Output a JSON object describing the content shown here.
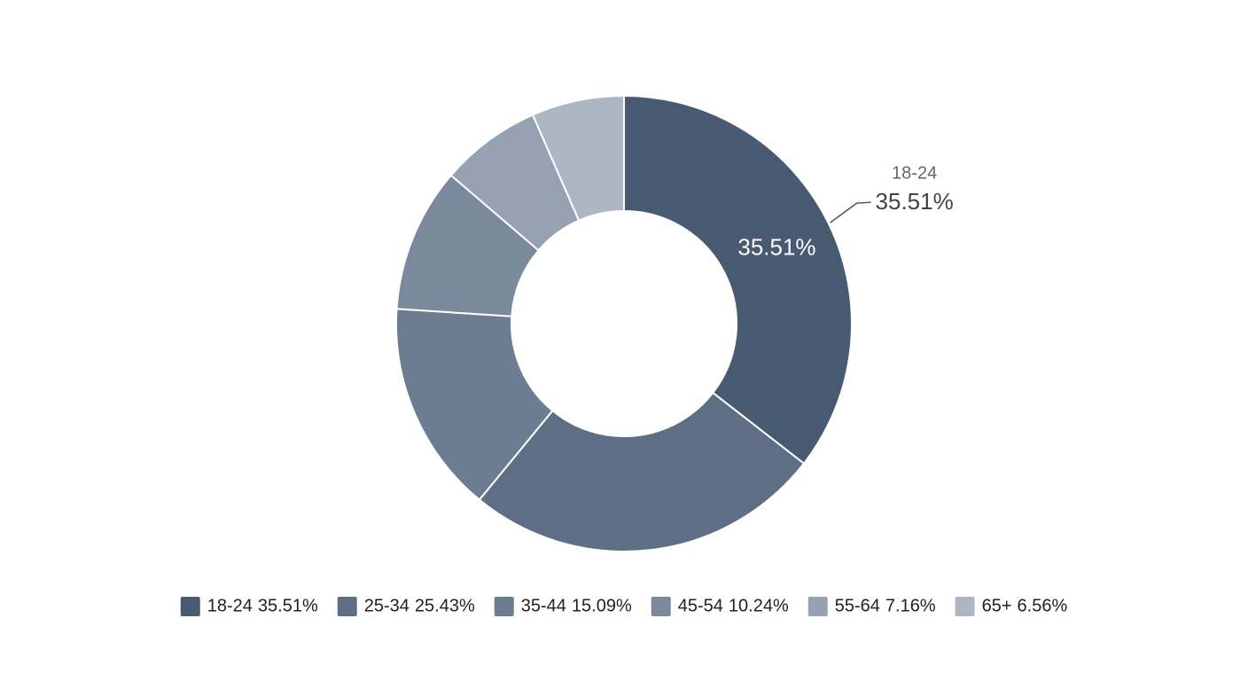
{
  "chart_data": {
    "type": "donut",
    "categories": [
      "18-24",
      "25-34",
      "35-44",
      "45-54",
      "55-64",
      "65+"
    ],
    "values": [
      35.51,
      25.43,
      15.09,
      10.24,
      7.16,
      6.56
    ],
    "value_labels": [
      "35.51%",
      "25.43%",
      "15.09%",
      "10.24%",
      "7.16%",
      "6.56%"
    ],
    "colors": [
      "#475a72",
      "#5e6f85",
      "#6d7d91",
      "#7b899d",
      "#96a1b1",
      "#adb6c3"
    ],
    "legend": "bottom"
  }
}
